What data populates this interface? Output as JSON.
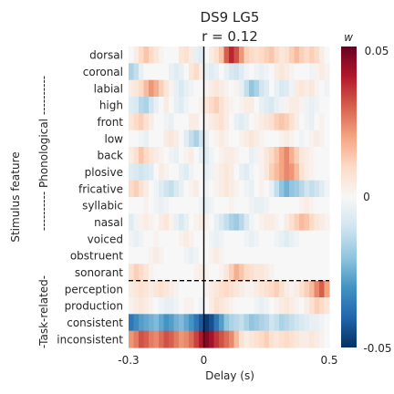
{
  "chart_data": {
    "type": "heatmap",
    "title": "DS9 LG5",
    "subtitle": "r = 0.12",
    "xlabel": "Delay (s)",
    "ylabel": "Stimulus feature",
    "group_labels": [
      {
        "label": "---------- Phonological ----------",
        "rows": [
          0,
          13
        ]
      },
      {
        "label": "-Task-related-",
        "rows": [
          14,
          17
        ]
      }
    ],
    "x_range": [
      -0.3,
      0.5
    ],
    "x_tick_labels": [
      "-0.3",
      "0",
      "0.5"
    ],
    "x_tick_values": [
      -0.3,
      0,
      0.5
    ],
    "x_reference_line": 0,
    "row_separator_after": "sonorant",
    "rows": [
      "dorsal",
      "coronal",
      "labial",
      "high",
      "front",
      "low",
      "back",
      "plosive",
      "fricative",
      "syllabic",
      "nasal",
      "voiced",
      "obstruent",
      "sonorant",
      "perception",
      "production",
      "consistent",
      "inconsistent"
    ],
    "delays": [
      -0.3,
      -0.28,
      -0.26,
      -0.24,
      -0.22,
      -0.2,
      -0.18,
      -0.16,
      -0.14,
      -0.12,
      -0.1,
      -0.08,
      -0.06,
      -0.04,
      -0.02,
      0,
      0.02,
      0.04,
      0.06,
      0.08,
      0.1,
      0.12,
      0.14,
      0.16,
      0.18,
      0.2,
      0.22,
      0.24,
      0.26,
      0.28,
      0.3,
      0.32,
      0.34,
      0.36,
      0.38,
      0.4,
      0.42,
      0.44,
      0.46,
      0.48
    ],
    "values": [
      [
        0,
        0.004,
        0.01,
        0.014,
        0.01,
        0.006,
        0.002,
        0,
        0,
        0,
        0.006,
        0.008,
        0.004,
        -0.004,
        -0.006,
        0,
        0.004,
        0.008,
        0.014,
        0.03,
        0.038,
        0.032,
        0.022,
        0.012,
        0.01,
        0.008,
        0.01,
        0.012,
        0.014,
        0.01,
        0.006,
        0.008,
        0.012,
        0.016,
        0.012,
        0.01,
        0.012,
        0.01,
        0.004,
        0
      ],
      [
        -0.016,
        -0.012,
        -0.004,
        0,
        0,
        0,
        0,
        0,
        -0.004,
        -0.006,
        -0.004,
        0,
        0.006,
        0.01,
        0.004,
        -0.004,
        -0.006,
        -0.004,
        0,
        -0.004,
        -0.008,
        -0.01,
        -0.006,
        -0.002,
        0,
        -0.002,
        -0.004,
        -0.002,
        0,
        0.004,
        0.006,
        0.004,
        0.002,
        0,
        0,
        0,
        -0.002,
        0.002,
        0.004,
        0.002
      ],
      [
        0.004,
        0.006,
        0.01,
        0.016,
        0.022,
        0.018,
        0.012,
        0.006,
        0.002,
        -0.004,
        -0.008,
        -0.004,
        -0.002,
        0,
        0,
        0.002,
        0.004,
        0.006,
        0.004,
        0.002,
        0,
        0.002,
        -0.004,
        -0.012,
        -0.02,
        -0.016,
        -0.01,
        -0.006,
        0,
        -0.004,
        -0.008,
        -0.006,
        -0.002,
        0.004,
        0.006,
        0.004,
        0.006,
        0.002,
        0,
        -0.002
      ],
      [
        -0.006,
        -0.008,
        -0.014,
        -0.016,
        -0.01,
        -0.004,
        0,
        0.004,
        0,
        -0.004,
        -0.006,
        -0.002,
        0,
        0,
        0.002,
        0.006,
        0.01,
        0.012,
        0.008,
        0.004,
        0.002,
        0,
        0.002,
        0.004,
        0.004,
        0,
        -0.004,
        -0.006,
        -0.008,
        -0.004,
        -0.002,
        0.002,
        0.004,
        0.004,
        0.002,
        -0.002,
        -0.004,
        -0.002,
        0,
        0
      ],
      [
        0.006,
        0.01,
        0.012,
        0.008,
        0.004,
        0,
        0,
        -0.002,
        -0.004,
        0,
        0,
        0,
        0.004,
        0.004,
        0,
        0.002,
        0.004,
        0.006,
        0.008,
        0.004,
        0,
        -0.004,
        -0.006,
        -0.004,
        0,
        0.002,
        0.004,
        0.006,
        0.008,
        0.012,
        0.014,
        0.012,
        0.008,
        0.004,
        0,
        -0.002,
        -0.004,
        0,
        0.002,
        0
      ],
      [
        0,
        0,
        -0.002,
        -0.004,
        0,
        0,
        0,
        0.004,
        0.006,
        0.004,
        0,
        -0.006,
        -0.012,
        -0.016,
        -0.01,
        -0.004,
        0,
        0.002,
        0.004,
        0.002,
        0,
        0,
        0.002,
        0.004,
        0.006,
        0.004,
        0.002,
        0,
        0,
        0,
        0.002,
        0.004,
        0.002,
        0,
        -0.002,
        0,
        0.002,
        0.004,
        0.002,
        0
      ],
      [
        0.004,
        0.008,
        0.014,
        0.01,
        0.006,
        0.004,
        0.002,
        0,
        -0.002,
        -0.004,
        0,
        0.002,
        0.004,
        0,
        -0.004,
        -0.006,
        -0.002,
        0,
        0.002,
        0.004,
        0.004,
        0.002,
        0,
        0,
        -0.004,
        -0.002,
        0.002,
        0.006,
        0.01,
        0.014,
        0.02,
        0.024,
        0.018,
        0.012,
        0.006,
        0.004,
        0.002,
        0,
        0,
        0
      ],
      [
        -0.006,
        -0.008,
        -0.01,
        -0.008,
        -0.006,
        0,
        0.004,
        0.002,
        0,
        0,
        -0.004,
        -0.006,
        -0.002,
        0,
        0,
        -0.004,
        -0.002,
        0.002,
        0.004,
        0.006,
        0.004,
        0,
        -0.004,
        -0.006,
        -0.002,
        0,
        0.002,
        0.006,
        0.012,
        0.016,
        0.02,
        0.024,
        0.022,
        0.016,
        0.008,
        0.004,
        0.002,
        0,
        0,
        0
      ],
      [
        0.01,
        0.012,
        0.008,
        0.004,
        0,
        -0.002,
        -0.006,
        -0.01,
        -0.012,
        -0.008,
        -0.004,
        0,
        0.002,
        0.004,
        0,
        -0.002,
        0,
        0.002,
        0.004,
        0.006,
        0.004,
        0.002,
        0,
        -0.002,
        -0.004,
        0,
        0.002,
        0,
        -0.004,
        -0.012,
        -0.02,
        -0.024,
        -0.02,
        -0.018,
        -0.014,
        -0.01,
        -0.012,
        -0.01,
        -0.006,
        -0.002
      ],
      [
        0,
        0,
        0,
        0.002,
        0,
        -0.002,
        -0.004,
        -0.002,
        0,
        0,
        0,
        0,
        0,
        0,
        -0.002,
        -0.004,
        -0.002,
        0,
        0,
        0,
        0.002,
        0,
        0,
        0,
        -0.002,
        -0.004,
        -0.004,
        -0.002,
        0,
        0,
        0,
        0,
        0,
        0,
        0.002,
        0.004,
        0.002,
        0,
        0,
        0
      ],
      [
        -0.006,
        -0.002,
        0.002,
        0.004,
        0.002,
        0,
        0.004,
        0.006,
        0.002,
        -0.004,
        -0.008,
        -0.004,
        0,
        0.002,
        0.004,
        0.002,
        0,
        -0.004,
        -0.008,
        -0.012,
        -0.016,
        -0.018,
        -0.014,
        -0.008,
        -0.002,
        0,
        0.002,
        0.004,
        0.004,
        0.002,
        0,
        0.004,
        0.008,
        0.012,
        0.016,
        0.014,
        0.01,
        0.006,
        0.004,
        0.002
      ],
      [
        -0.002,
        -0.004,
        -0.002,
        0,
        0,
        0.002,
        0,
        0,
        0,
        0,
        0.002,
        0.004,
        0.002,
        0,
        0,
        0,
        -0.002,
        -0.004,
        -0.002,
        0,
        0,
        0,
        0,
        -0.002,
        -0.004,
        -0.002,
        0,
        0,
        0,
        -0.002,
        -0.004,
        -0.006,
        -0.004,
        -0.002,
        0,
        0,
        0,
        0,
        0,
        0
      ],
      [
        0,
        0,
        0,
        0,
        0.002,
        0.004,
        0.002,
        0,
        0,
        0,
        0,
        -0.002,
        -0.004,
        -0.002,
        0,
        0,
        0.002,
        0.004,
        0.002,
        0,
        0,
        0,
        0,
        0,
        0,
        0,
        0,
        0,
        0,
        0,
        0,
        0,
        0,
        0,
        0,
        0,
        0,
        0,
        0,
        0
      ],
      [
        0.008,
        0.012,
        0.01,
        0.006,
        0.002,
        0,
        0,
        0,
        0,
        0,
        0,
        0,
        0,
        0.002,
        0.004,
        0.002,
        0,
        0,
        0.002,
        0.006,
        0.012,
        0.018,
        0.014,
        0.01,
        0.008,
        0.006,
        0.006,
        0.004,
        0.002,
        0,
        0,
        0,
        0,
        0,
        0,
        0,
        0,
        0,
        0,
        0
      ],
      [
        0.004,
        0.006,
        0.008,
        0.006,
        0.004,
        0.006,
        0.008,
        0.006,
        0.004,
        0.002,
        0,
        0,
        0,
        0,
        0,
        0.002,
        0.004,
        0.006,
        0.008,
        0.01,
        0.008,
        0.006,
        0.004,
        0.002,
        0.002,
        0.004,
        0.006,
        0.008,
        0.01,
        0.012,
        0.008,
        0.004,
        0.002,
        0.004,
        0.008,
        0.012,
        0.016,
        0.024,
        0.03,
        0.02
      ],
      [
        0.002,
        0.004,
        0.006,
        0.004,
        0.002,
        0,
        -0.002,
        -0.004,
        -0.004,
        -0.002,
        0,
        0.002,
        0.002,
        0,
        -0.002,
        0,
        0.004,
        0.008,
        0.006,
        0.004,
        0.002,
        0,
        0,
        0,
        0,
        -0.002,
        -0.004,
        -0.002,
        0,
        0.002,
        0.004,
        0.006,
        0.004,
        0.002,
        0,
        0.004,
        0.008,
        0.012,
        0.01,
        0.006
      ],
      [
        -0.036,
        -0.032,
        -0.028,
        -0.026,
        -0.024,
        -0.022,
        -0.026,
        -0.03,
        -0.028,
        -0.024,
        -0.022,
        -0.026,
        -0.03,
        -0.036,
        -0.042,
        -0.048,
        -0.044,
        -0.036,
        -0.028,
        -0.02,
        -0.016,
        -0.014,
        -0.012,
        -0.016,
        -0.02,
        -0.018,
        -0.016,
        -0.014,
        -0.01,
        -0.012,
        -0.016,
        -0.014,
        -0.012,
        -0.01,
        -0.008,
        -0.006,
        -0.004,
        -0.004,
        -0.002,
        0
      ],
      [
        0.022,
        0.026,
        0.032,
        0.03,
        0.026,
        0.024,
        0.028,
        0.032,
        0.03,
        0.026,
        0.022,
        0.024,
        0.028,
        0.034,
        0.04,
        0.046,
        0.042,
        0.036,
        0.032,
        0.028,
        0.024,
        0.016,
        0.008,
        0.004,
        0.006,
        0.008,
        0.01,
        0.012,
        0.008,
        0.006,
        0.008,
        0.01,
        0.008,
        0.006,
        0.004,
        0.004,
        0.006,
        0.004,
        0.002,
        0
      ]
    ],
    "colorbar": {
      "label": "w",
      "min": -0.05,
      "max": 0.05,
      "tick_labels": [
        "0.05",
        "0",
        "-0.05"
      ],
      "tick_values": [
        0.05,
        0,
        -0.05
      ],
      "colormap": "RdBu_r",
      "colors": [
        "#053061",
        "#2166ac",
        "#4393c3",
        "#92c5de",
        "#d1e5f0",
        "#f7f7f7",
        "#fddbc7",
        "#f4a582",
        "#d6604d",
        "#b2182b",
        "#67001f"
      ]
    }
  }
}
